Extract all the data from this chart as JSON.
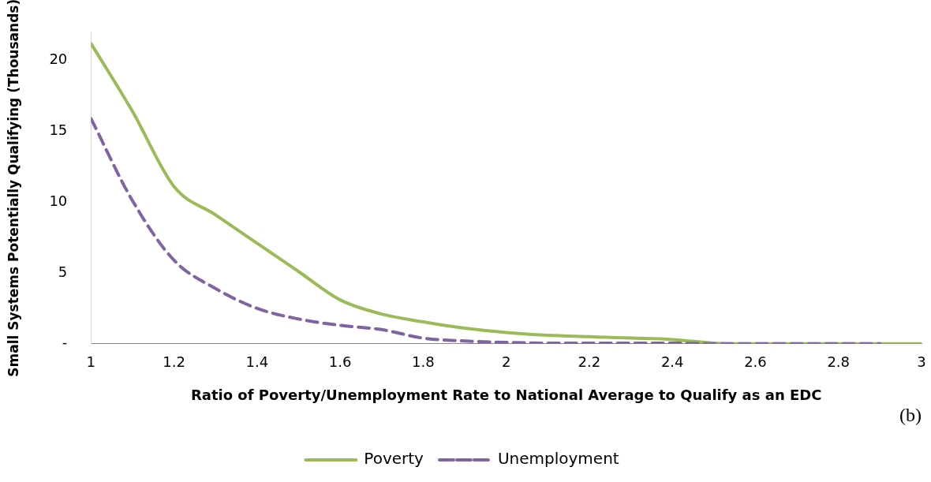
{
  "chart_data": {
    "type": "line",
    "xlabel": "Ratio of Poverty/Unemployment Rate to National Average to Qualify as an EDC",
    "ylabel": "Small Systems Potentially Qualifying (Thousands)",
    "annotations": [
      "(b)"
    ],
    "xlim": [
      1,
      3
    ],
    "xticks": [
      1,
      1.2,
      1.4,
      1.6,
      1.8,
      2,
      2.2,
      2.4,
      2.6,
      2.8,
      3
    ],
    "ylim": [
      0,
      22
    ],
    "yticks": [
      {
        "value": 0,
        "label": "-"
      },
      5,
      10,
      15,
      20
    ],
    "grid": false,
    "legend": "bottom",
    "marker": "none",
    "series": [
      {
        "name": "Poverty",
        "color": "#9bbb59",
        "line_style": "solid",
        "x": [
          1,
          1.1,
          1.2,
          1.3,
          1.4,
          1.5,
          1.6,
          1.7,
          1.8,
          1.9,
          2,
          2.1,
          2.2,
          2.3,
          2.4,
          2.5,
          2.6,
          2.7,
          2.8,
          2.9,
          3
        ],
        "values": [
          21.2,
          16.4,
          11.1,
          9.1,
          7.1,
          5.1,
          3.1,
          2.1,
          1.55,
          1.1,
          0.8,
          0.6,
          0.5,
          0.4,
          0.3,
          0.05,
          0,
          0,
          0,
          0,
          0
        ]
      },
      {
        "name": "Unemployment",
        "color": "#8064a2",
        "line_style": "dashed",
        "x": [
          1,
          1.1,
          1.2,
          1.3,
          1.4,
          1.5,
          1.6,
          1.7,
          1.8,
          1.9,
          2,
          2.1,
          2.2,
          2.3,
          2.4,
          2.5,
          2.6,
          2.7,
          2.8,
          2.9
        ],
        "values": [
          15.9,
          10.1,
          5.9,
          3.9,
          2.5,
          1.75,
          1.3,
          1,
          0.4,
          0.2,
          0.1,
          0.05,
          0.05,
          0.05,
          0.05,
          0,
          0,
          0,
          0,
          0
        ]
      }
    ]
  }
}
